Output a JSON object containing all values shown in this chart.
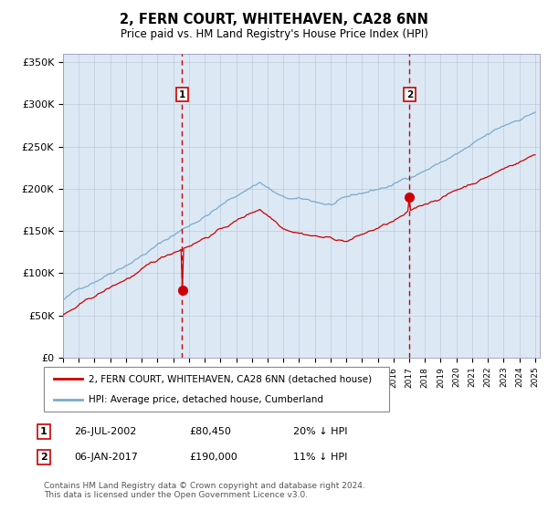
{
  "title": "2, FERN COURT, WHITEHAVEN, CA28 6NN",
  "subtitle": "Price paid vs. HM Land Registry's House Price Index (HPI)",
  "background_color": "#dce9f5",
  "plot_bg_color": "#dce9f5",
  "ylim": [
    0,
    360000
  ],
  "yticks": [
    0,
    50000,
    100000,
    150000,
    200000,
    250000,
    300000,
    350000
  ],
  "ytick_labels": [
    "£0",
    "£50K",
    "£100K",
    "£150K",
    "£200K",
    "£250K",
    "£300K",
    "£350K"
  ],
  "xstart_year": 1995,
  "xend_year": 2025,
  "red_line_color": "#cc0000",
  "blue_line_color": "#7aabcc",
  "marker_color": "#cc0000",
  "vline_color": "#cc0000",
  "annotation1": {
    "label": "1",
    "year": 2002.57,
    "price": 80450
  },
  "annotation2": {
    "label": "2",
    "year": 2017.02,
    "price": 190000
  },
  "legend_line1": "2, FERN COURT, WHITEHAVEN, CA28 6NN (detached house)",
  "legend_line2": "HPI: Average price, detached house, Cumberland",
  "table_row1": {
    "num": "1",
    "date": "26-JUL-2002",
    "price": "£80,450",
    "pct": "20% ↓ HPI"
  },
  "table_row2": {
    "num": "2",
    "date": "06-JAN-2017",
    "price": "£190,000",
    "pct": "11% ↓ HPI"
  },
  "footer": "Contains HM Land Registry data © Crown copyright and database right 2024.\nThis data is licensed under the Open Government Licence v3.0.",
  "seed": 42
}
